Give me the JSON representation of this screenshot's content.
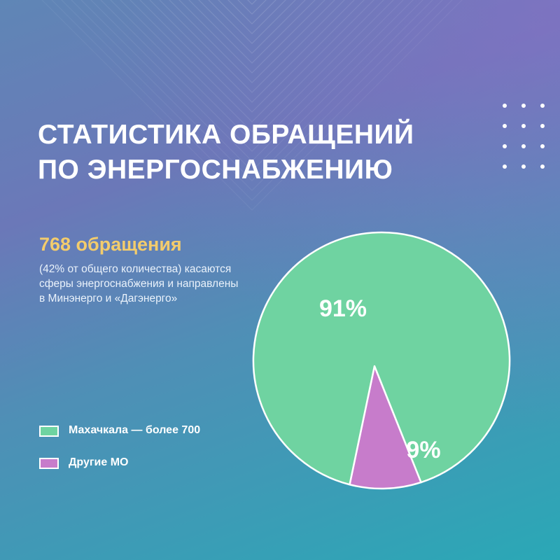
{
  "title": {
    "line1": "СТАТИСТИКА ОБРАЩЕНИЙ",
    "line2": "ПО ЭНЕРГОСНАБЖЕНИЮ"
  },
  "highlight": "768 обращения",
  "description": {
    "line1": "(42% от общего количества) касаются",
    "line2": "сферы энергоснабжения и направлены",
    "line3": "в Минэнерго и «Дагэнерго»"
  },
  "legend": [
    {
      "label": "Махачкала — более 700",
      "color": "#6fd3a1"
    },
    {
      "label": "Другие МО",
      "color": "#c77ccb"
    }
  ],
  "chart_data": {
    "type": "pie",
    "categories": [
      "Махачкала — более 700",
      "Другие МО"
    ],
    "values": [
      91,
      9
    ],
    "labels": [
      "91%",
      "9%"
    ],
    "colors": [
      "#6fd3a1",
      "#c77ccb"
    ],
    "legend_position": "left"
  }
}
